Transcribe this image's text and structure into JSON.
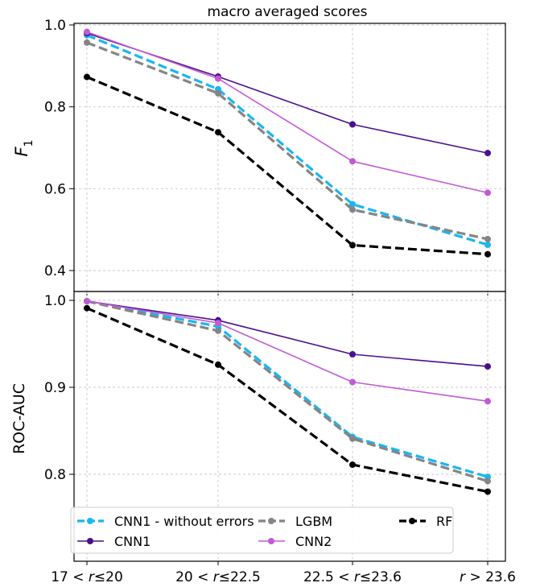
{
  "chart_data": [
    {
      "type": "line",
      "title": "macro averaged scores",
      "ylabel_main": "F",
      "ylabel_sub": "1",
      "ylim": [
        0.4,
        1.0
      ],
      "yticks": [
        "0.4",
        "0.6",
        "0.8",
        "1.0"
      ],
      "grid": true,
      "series": [
        {
          "name": "CNN1 - without errors",
          "color": "#1ab6f0",
          "style": "dashed",
          "values": [
            0.975,
            0.843,
            0.562,
            0.463
          ]
        },
        {
          "name": "CNN1",
          "color": "#4b0f8c",
          "style": "solid",
          "values": [
            0.98,
            0.874,
            0.757,
            0.687
          ]
        },
        {
          "name": "LGBM",
          "color": "#858585",
          "style": "dashed",
          "values": [
            0.957,
            0.833,
            0.549,
            0.477
          ]
        },
        {
          "name": "CNN2",
          "color": "#c25ad6",
          "style": "solid",
          "values": [
            0.983,
            0.869,
            0.667,
            0.59
          ]
        },
        {
          "name": "RF",
          "color": "#000000",
          "style": "dashed",
          "values": [
            0.873,
            0.738,
            0.462,
            0.44
          ]
        }
      ]
    },
    {
      "type": "line",
      "ylabel": "ROC-AUC",
      "ylim": [
        0.75,
        1.005
      ],
      "yticks": [
        "0.8",
        "0.9",
        "1.0"
      ],
      "grid": true,
      "legend": "lower-left",
      "categories": [
        "17 < r≤20",
        "20 < r≤22.5",
        "22.5 < r≤23.6",
        "r > 23.6"
      ],
      "series": [
        {
          "name": "CNN1 - without errors",
          "color": "#1ab6f0",
          "style": "dashed",
          "values": [
            0.999,
            0.97,
            0.843,
            0.797
          ]
        },
        {
          "name": "CNN1",
          "color": "#4b0f8c",
          "style": "solid",
          "values": [
            0.999,
            0.977,
            0.938,
            0.924
          ]
        },
        {
          "name": "LGBM",
          "color": "#858585",
          "style": "dashed",
          "values": [
            0.999,
            0.965,
            0.841,
            0.792
          ]
        },
        {
          "name": "CNN2",
          "color": "#c25ad6",
          "style": "solid",
          "values": [
            0.999,
            0.974,
            0.906,
            0.884
          ]
        },
        {
          "name": "RF",
          "color": "#000000",
          "style": "dashed",
          "values": [
            0.991,
            0.926,
            0.811,
            0.78
          ]
        }
      ]
    }
  ]
}
